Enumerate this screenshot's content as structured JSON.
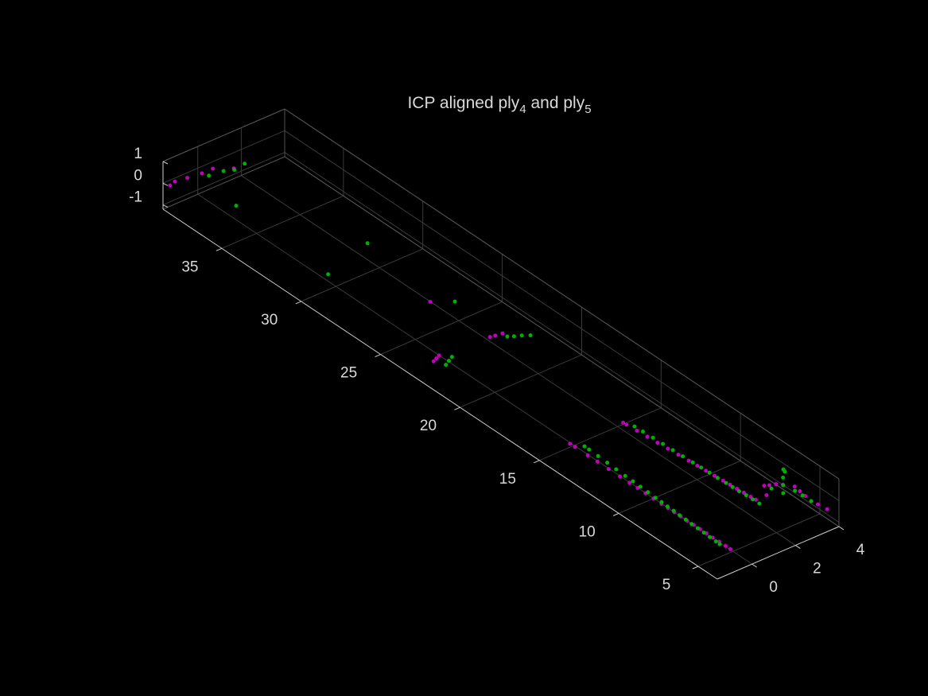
{
  "chart_data": {
    "type": "scatter3d",
    "title_parts": [
      "ICP aligned ply",
      "4",
      " and ply",
      "5"
    ],
    "background": "#000000",
    "grid": true,
    "xlim": [
      -1.6,
      4.0
    ],
    "xticks": [
      0,
      2,
      4
    ],
    "ylim": [
      3.8,
      38.7
    ],
    "yticks": [
      5,
      10,
      15,
      20,
      25,
      30,
      35
    ],
    "zlim": [
      -1.2,
      1.0
    ],
    "zticks": [
      -1,
      0,
      1
    ],
    "series": [
      {
        "color": "#c000c0",
        "points": [
          [
            -1.5,
            38.4,
            0
          ],
          [
            -1.2,
            38.5,
            0
          ],
          [
            -0.7,
            38.4,
            0
          ],
          [
            -0.1,
            38.3,
            0
          ],
          [
            0.4,
            38.3,
            0
          ],
          [
            1.0,
            37.8,
            0
          ],
          [
            0.9,
            25.3,
            0
          ],
          [
            1.1,
            21.8,
            0
          ],
          [
            1.3,
            21.75,
            0
          ],
          [
            1.6,
            21.7,
            0
          ],
          [
            -1.5,
            21.8,
            0
          ],
          [
            -1.3,
            21.9,
            0
          ],
          [
            -1.1,
            22.0,
            0
          ],
          [
            -1.14,
            13.7,
            0
          ],
          [
            -1.13,
            13.4,
            0
          ],
          [
            -1.13,
            12.6,
            0
          ],
          [
            -1.12,
            12.0,
            0
          ],
          [
            -1.12,
            11.3,
            0
          ],
          [
            -1.11,
            10.6,
            0
          ],
          [
            -1.11,
            10.0,
            0
          ],
          [
            -1.1,
            9.5,
            0
          ],
          [
            -1.1,
            9.0,
            0
          ],
          [
            -1.1,
            8.5,
            0
          ],
          [
            -1.1,
            8.0,
            0
          ],
          [
            -1.09,
            7.6,
            0
          ],
          [
            -1.09,
            7.2,
            0
          ],
          [
            -1.09,
            6.8,
            0
          ],
          [
            -1.09,
            6.4,
            0
          ],
          [
            -1.08,
            6.0,
            0
          ],
          [
            -1.08,
            5.6,
            0
          ],
          [
            -1.08,
            5.2,
            0
          ],
          [
            -1.08,
            4.8,
            0
          ],
          [
            -1.07,
            4.4,
            0
          ],
          [
            -1.07,
            4.0,
            0
          ],
          [
            -1.07,
            3.7,
            0
          ],
          [
            1.23,
            13.6,
            0
          ],
          [
            1.24,
            13.4,
            0
          ],
          [
            1.28,
            12.8,
            0
          ],
          [
            1.32,
            12.2,
            0
          ],
          [
            1.35,
            11.6,
            0
          ],
          [
            1.39,
            11.0,
            0
          ],
          [
            1.43,
            10.4,
            0
          ],
          [
            1.47,
            9.8,
            0
          ],
          [
            1.5,
            9.3,
            0
          ],
          [
            1.53,
            8.8,
            0
          ],
          [
            1.56,
            8.3,
            0
          ],
          [
            1.59,
            7.8,
            0
          ],
          [
            1.62,
            7.4,
            0
          ],
          [
            1.64,
            7.0,
            0
          ],
          [
            1.67,
            6.6,
            0
          ],
          [
            1.69,
            6.2,
            0
          ],
          [
            1.71,
            5.9,
            0
          ],
          [
            2.2,
            5.9,
            0
          ],
          [
            2.53,
            6.5,
            0
          ],
          [
            2.7,
            6.4,
            0
          ],
          [
            2.93,
            6.3,
            0
          ],
          [
            3.1,
            6.1,
            0
          ],
          [
            3.35,
            5.7,
            0
          ],
          [
            3.3,
            5.3,
            0
          ],
          [
            3.25,
            4.9,
            0
          ],
          [
            3.2,
            4.45,
            0
          ],
          [
            3.25,
            4.1,
            0
          ],
          [
            3.31,
            3.6,
            0
          ]
        ]
      },
      {
        "color": "#00b000",
        "points": [
          [
            0.0,
            38.0,
            0
          ],
          [
            0.6,
            37.9,
            0
          ],
          [
            0.95,
            37.7,
            0
          ],
          [
            1.5,
            37.8,
            0
          ],
          [
            -0.5,
            35.6,
            0
          ],
          [
            1.6,
            30.2,
            0
          ],
          [
            -0.8,
            29.4,
            0
          ],
          [
            1.6,
            24.7,
            0
          ],
          [
            1.6,
            21.4,
            0
          ],
          [
            1.8,
            21.25,
            0
          ],
          [
            2.05,
            21.1,
            0
          ],
          [
            2.3,
            20.9,
            0
          ],
          [
            -1.3,
            21.3,
            0
          ],
          [
            -1.05,
            21.45,
            0
          ],
          [
            -0.8,
            21.6,
            0
          ],
          [
            -0.84,
            13.2,
            0
          ],
          [
            -0.85,
            12.9,
            0
          ],
          [
            -0.87,
            12.3,
            0
          ],
          [
            -0.89,
            11.7,
            0
          ],
          [
            -0.92,
            11.1,
            0
          ],
          [
            -0.94,
            10.5,
            0
          ],
          [
            -0.95,
            10.0,
            0
          ],
          [
            -0.97,
            9.5,
            0
          ],
          [
            -0.99,
            9.0,
            0
          ],
          [
            -1.01,
            8.5,
            0
          ],
          [
            -1.02,
            8.1,
            0
          ],
          [
            -1.04,
            7.7,
            0
          ],
          [
            -1.05,
            7.3,
            0
          ],
          [
            -1.07,
            6.9,
            0
          ],
          [
            -1.08,
            6.5,
            0
          ],
          [
            -1.1,
            6.1,
            0
          ],
          [
            -1.11,
            5.7,
            0
          ],
          [
            -1.12,
            5.3,
            0
          ],
          [
            -1.14,
            4.9,
            0
          ],
          [
            -1.15,
            4.5,
            0
          ],
          [
            -1.16,
            4.25,
            0
          ],
          [
            1.39,
            13.1,
            0
          ],
          [
            1.41,
            12.6,
            0
          ],
          [
            1.43,
            12.0,
            0
          ],
          [
            1.45,
            11.4,
            0
          ],
          [
            1.47,
            10.8,
            0
          ],
          [
            1.49,
            10.2,
            0
          ],
          [
            1.51,
            9.6,
            0
          ],
          [
            1.53,
            9.1,
            0
          ],
          [
            1.55,
            8.6,
            0
          ],
          [
            1.56,
            8.1,
            0
          ],
          [
            1.58,
            7.6,
            0
          ],
          [
            1.59,
            7.2,
            0
          ],
          [
            1.6,
            6.8,
            0
          ],
          [
            1.63,
            6.4,
            0
          ],
          [
            1.64,
            6.0,
            0
          ],
          [
            1.65,
            5.6,
            0
          ],
          [
            2.62,
            6.16,
            0
          ],
          [
            3.08,
            6.05,
            0
          ],
          [
            3.4,
            6.5,
            0
          ],
          [
            3.75,
            6.96,
            0
          ],
          [
            3.7,
            6.8,
            0
          ],
          [
            2.75,
            5.6,
            0
          ],
          [
            3.18,
            5.45,
            0
          ],
          [
            3.2,
            5.0,
            0
          ],
          [
            3.2,
            4.45,
            0
          ]
        ]
      }
    ]
  }
}
